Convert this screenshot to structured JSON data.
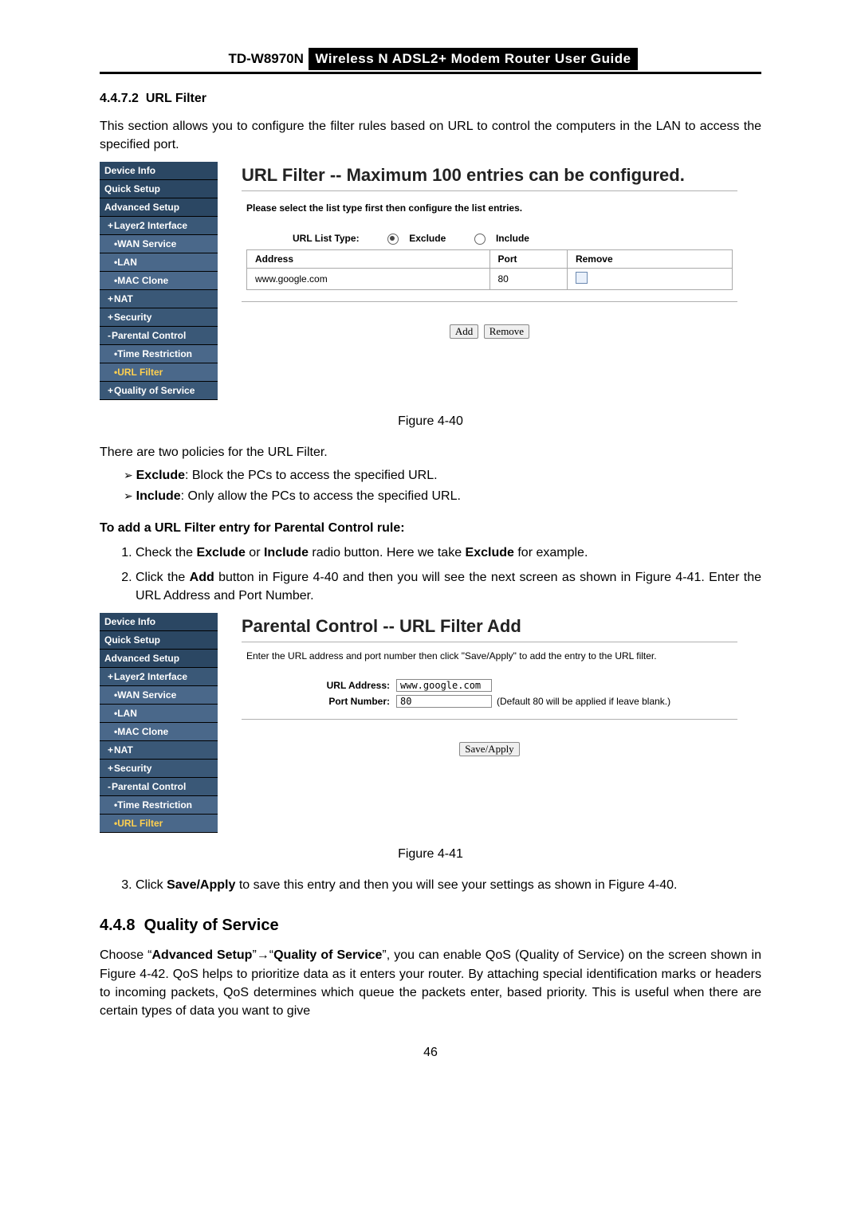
{
  "header": {
    "model": "TD-W8970N",
    "guide": "Wireless  N  ADSL2+  Modem  Router  User  Guide"
  },
  "section": {
    "num": "4.4.7.2",
    "title": "URL Filter"
  },
  "intro": "This section allows you to configure the filter rules based on URL to control the computers in the LAN to access the specified port.",
  "ui1": {
    "nav": [
      {
        "label": "Device Info",
        "cls": ""
      },
      {
        "label": "Quick Setup",
        "cls": ""
      },
      {
        "label": "Advanced Setup",
        "cls": ""
      },
      {
        "label": "Layer2 Interface",
        "cls": "lvl1"
      },
      {
        "label": "WAN Service",
        "cls": "lvl2"
      },
      {
        "label": "LAN",
        "cls": "lvl2"
      },
      {
        "label": "MAC Clone",
        "cls": "lvl2"
      },
      {
        "label": "NAT",
        "cls": "lvl1"
      },
      {
        "label": "Security",
        "cls": "lvl1"
      },
      {
        "label": "Parental Control",
        "cls": "lvl1 minus"
      },
      {
        "label": "Time Restriction",
        "cls": "lvl2"
      },
      {
        "label": "URL Filter",
        "cls": "lvl2 active"
      },
      {
        "label": "Quality of Service",
        "cls": "lvl1"
      }
    ],
    "title": "URL Filter -- Maximum 100 entries can be configured.",
    "instr": "Please select the list type first then configure the list entries.",
    "list_type_label": "URL List Type:",
    "radio_exclude": "Exclude",
    "radio_include": "Include",
    "th_address": "Address",
    "th_port": "Port",
    "th_remove": "Remove",
    "row_address": "www.google.com",
    "row_port": "80",
    "btn_add": "Add",
    "btn_remove": "Remove"
  },
  "fig1": "Figure 4-40",
  "policies_intro": "There are two policies for the URL Filter.",
  "policy_exclude": "Exclude",
  "policy_exclude_desc": ": Block the PCs to access the specified URL.",
  "policy_include": "Include",
  "policy_include_desc": ": Only allow the PCs to access the specified URL.",
  "howto_heading": "To add a URL Filter entry for Parental Control rule:",
  "step1_a": "Check the ",
  "step1_b": "Exclude",
  "step1_c": " or ",
  "step1_d": "Include",
  "step1_e": " radio button. Here we take ",
  "step1_f": "Exclude",
  "step1_g": " for example.",
  "step2_a": "Click the ",
  "step2_b": "Add",
  "step2_c": " button in Figure 4-40 and then you will see the next screen as shown in Figure 4-41. Enter the URL Address and Port Number.",
  "ui2": {
    "nav": [
      {
        "label": "Device Info",
        "cls": ""
      },
      {
        "label": "Quick Setup",
        "cls": ""
      },
      {
        "label": "Advanced Setup",
        "cls": ""
      },
      {
        "label": "Layer2 Interface",
        "cls": "lvl1"
      },
      {
        "label": "WAN Service",
        "cls": "lvl2"
      },
      {
        "label": "LAN",
        "cls": "lvl2"
      },
      {
        "label": "MAC Clone",
        "cls": "lvl2"
      },
      {
        "label": "NAT",
        "cls": "lvl1"
      },
      {
        "label": "Security",
        "cls": "lvl1"
      },
      {
        "label": "Parental Control",
        "cls": "lvl1 minus"
      },
      {
        "label": "Time Restriction",
        "cls": "lvl2"
      },
      {
        "label": "URL Filter",
        "cls": "lvl2 active"
      }
    ],
    "title": "Parental Control -- URL Filter Add",
    "instr": "Enter the URL address and port number then click \"Save/Apply\" to add the entry to the URL filter.",
    "url_label": "URL Address:",
    "url_value": "www.google.com",
    "port_label": "Port Number:",
    "port_value": "80",
    "port_note": "(Default 80 will be applied if leave blank.)",
    "btn_save": "Save/Apply"
  },
  "fig2": "Figure 4-41",
  "step3_a": "Click ",
  "step3_b": "Save/Apply",
  "step3_c": " to save this entry and then you will see your settings as shown in Figure 4-40.",
  "sec448": {
    "num": "4.4.8",
    "title": "Quality of Service"
  },
  "qos_a": "Choose “",
  "qos_b": "Advanced Setup",
  "qos_c": "”",
  "qos_arrow": "→",
  "qos_d": "“",
  "qos_e": "Quality of Service",
  "qos_f": "”, you can enable QoS (Quality of Service) on the screen shown in Figure 4-42. QoS helps to prioritize data as it enters your router. By attaching special identification marks or headers to incoming packets, QoS determines which queue the packets enter, based priority. This is useful when there are certain types of data you want to give",
  "page_num": "46"
}
